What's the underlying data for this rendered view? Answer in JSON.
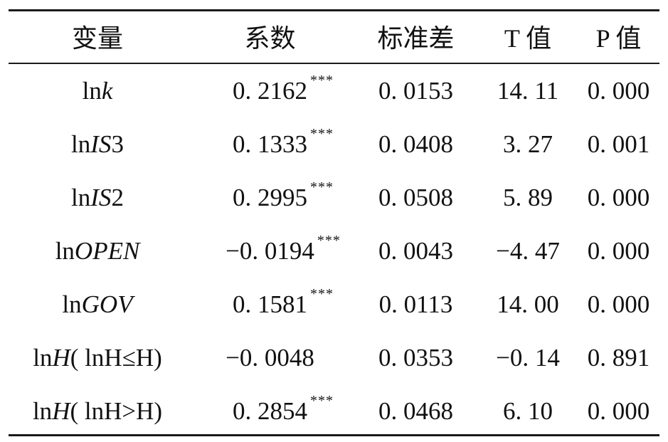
{
  "table": {
    "headers": [
      "变量",
      "系数",
      "标准差",
      "T 值",
      "P 值"
    ],
    "rows": [
      {
        "ln": "ln",
        "var": "k",
        "suffix": "",
        "coef": "0. 2162",
        "stars": "***",
        "se": "0. 0153",
        "t": "14. 11",
        "p": "0. 000"
      },
      {
        "ln": "ln",
        "var": "IS",
        "suffix": "3",
        "coef": "0. 1333",
        "stars": "***",
        "se": "0. 0408",
        "t": "3. 27",
        "p": "0. 001"
      },
      {
        "ln": "ln",
        "var": "IS",
        "suffix": "2",
        "coef": "0. 2995",
        "stars": "***",
        "se": "0. 0508",
        "t": "5. 89",
        "p": "0. 000"
      },
      {
        "ln": "ln",
        "var": "OPEN",
        "suffix": "",
        "coef": "−0. 0194",
        "stars": "***",
        "se": "0. 0043",
        "t": "−4. 47",
        "p": "0. 000"
      },
      {
        "ln": "ln",
        "var": "GOV",
        "suffix": "",
        "coef": "0. 1581",
        "stars": "***",
        "se": "0. 0113",
        "t": "14. 00",
        "p": "0. 000"
      },
      {
        "ln": "ln",
        "var": "H",
        "suffix": "( lnH≤H)",
        "coef": "−0. 0048",
        "stars": "",
        "se": "0. 0353",
        "t": "−0. 14",
        "p": "0. 891"
      },
      {
        "ln": "ln",
        "var": "H",
        "suffix": "( lnH>H)",
        "coef": "0. 2854",
        "stars": "***",
        "se": "0. 0468",
        "t": "6. 10",
        "p": "0. 000"
      }
    ]
  }
}
